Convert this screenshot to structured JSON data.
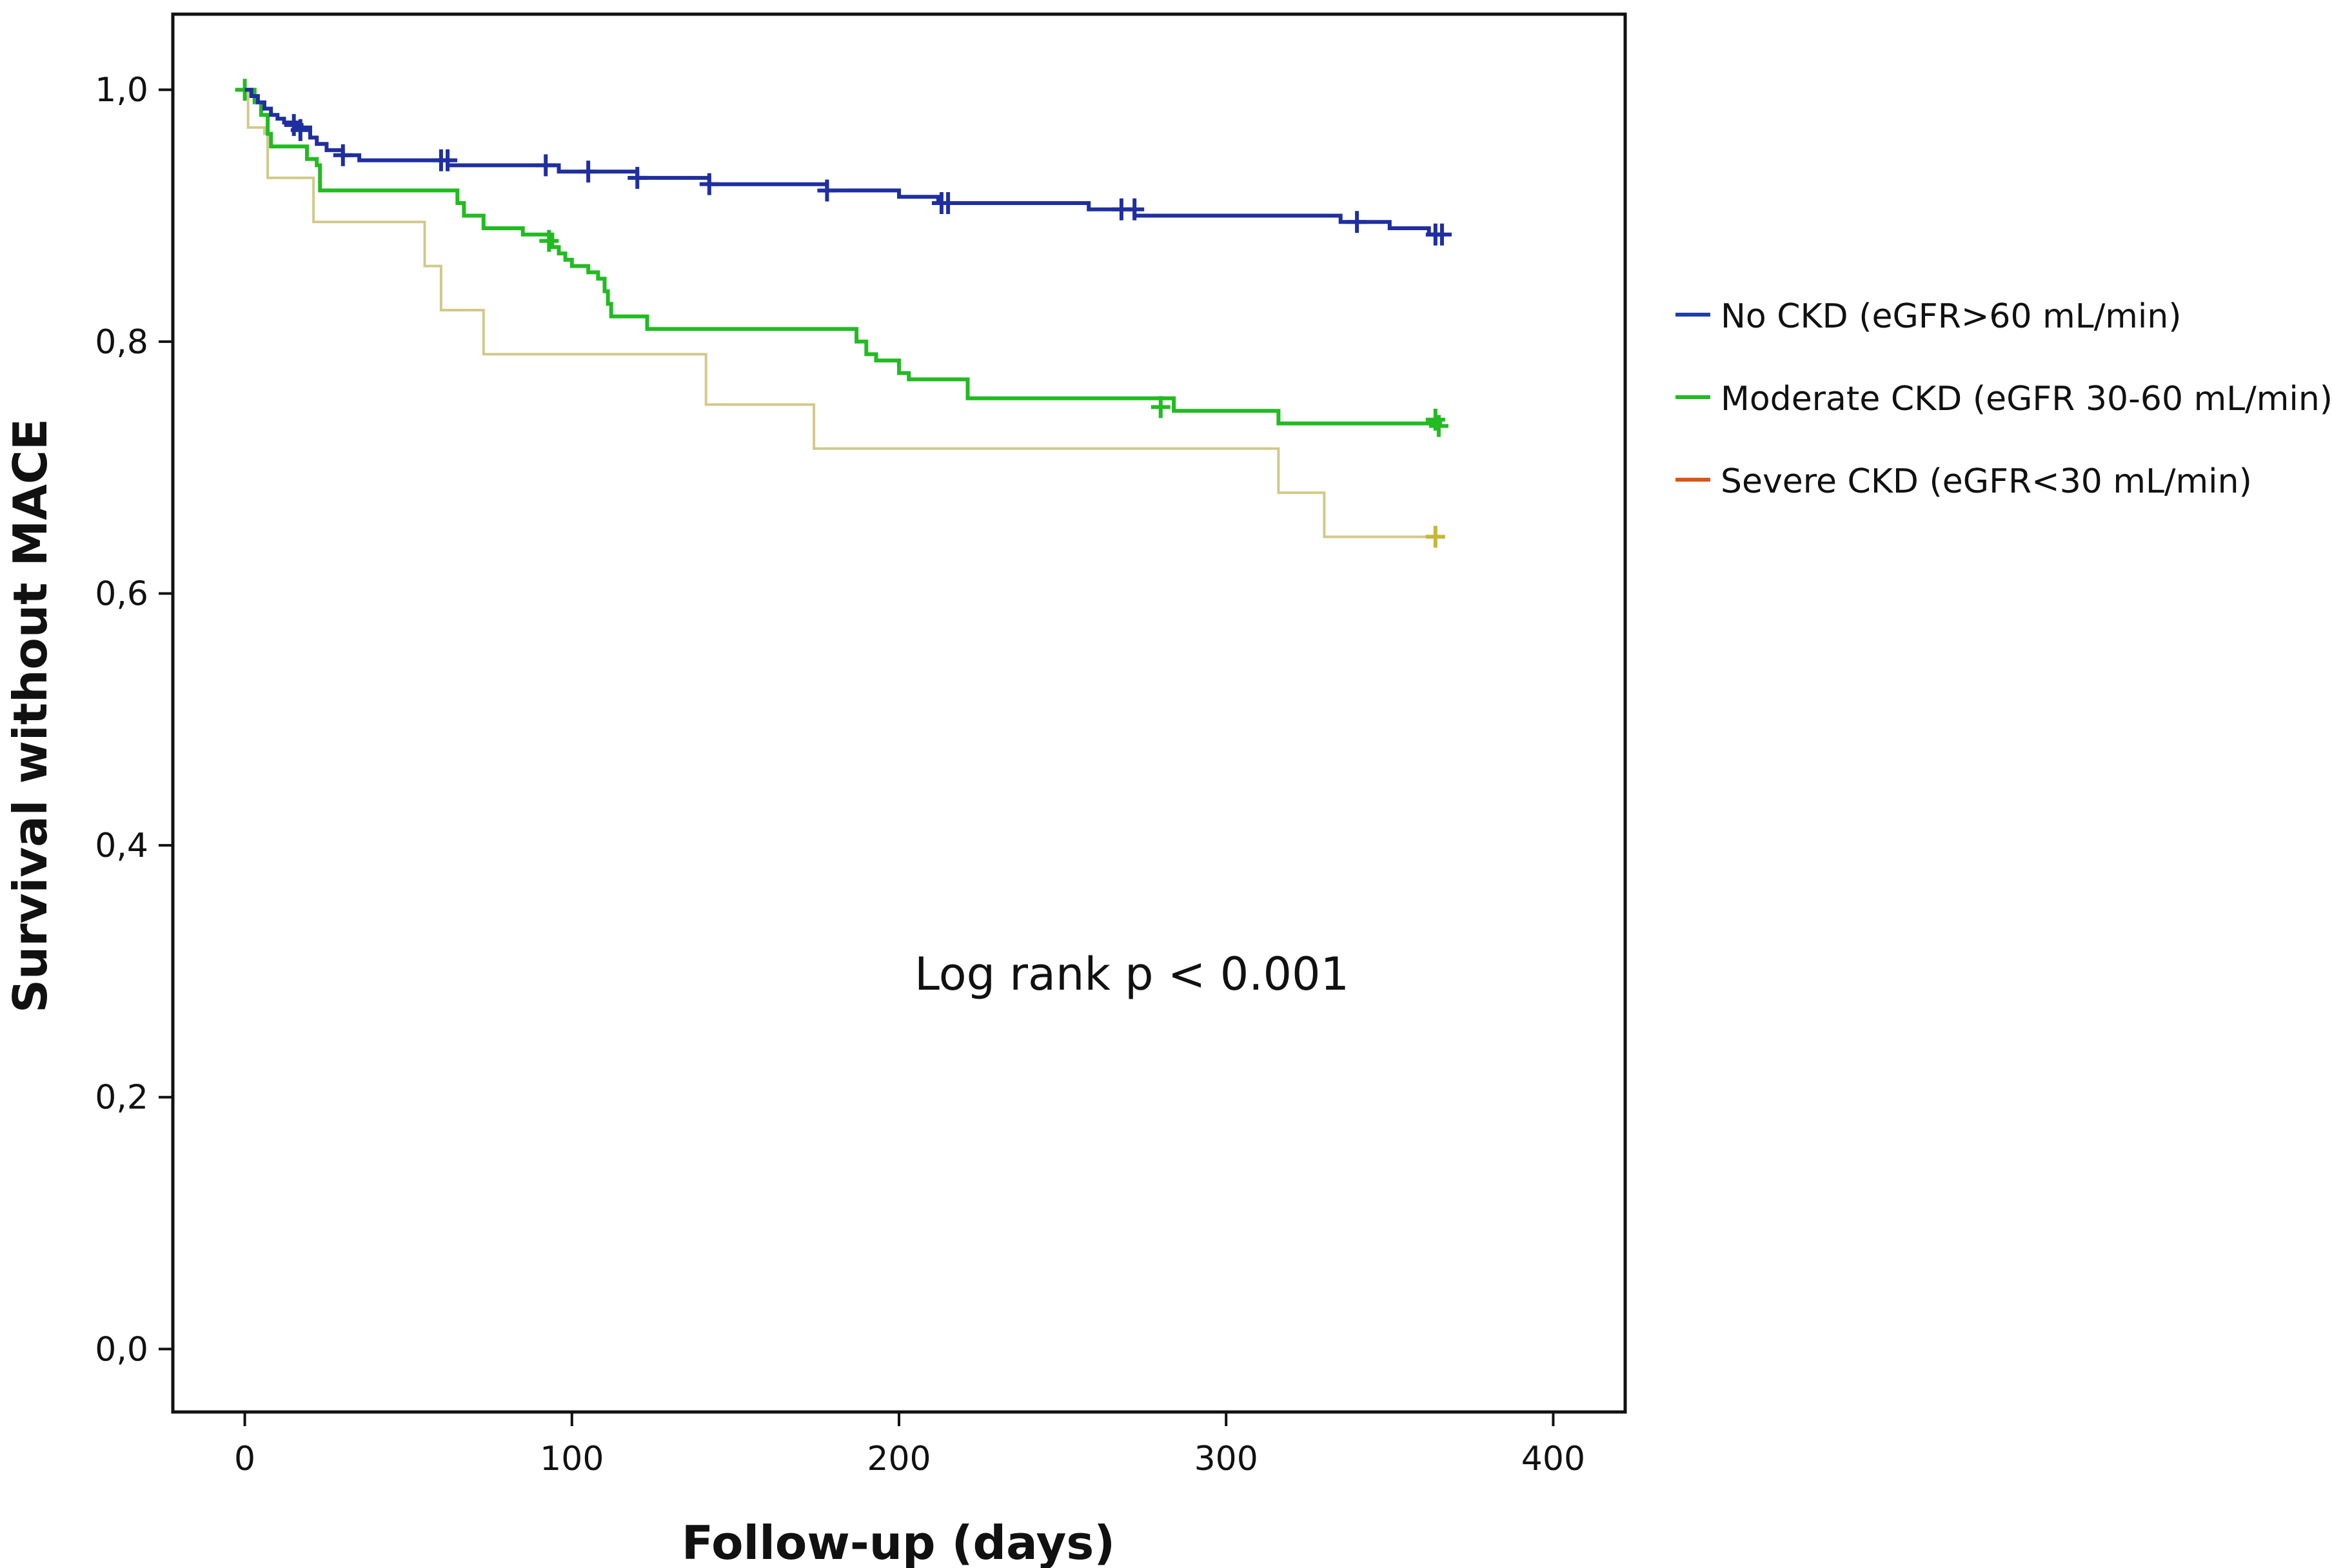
{
  "chart_data": {
    "type": "line",
    "subtype": "kaplan-meier step",
    "xlabel": "Follow-up (days)",
    "ylabel": "Survival without MACE",
    "xlim": [
      -22,
      422
    ],
    "ylim": [
      -0.05,
      1.06
    ],
    "x_ticks": [
      0,
      100,
      200,
      300,
      400
    ],
    "x_tick_labels": [
      "0",
      "100",
      "200",
      "300",
      "400"
    ],
    "y_ticks": [
      0,
      0.2,
      0.4,
      0.6,
      0.8,
      1.0
    ],
    "y_tick_labels": [
      "0,0",
      "0,2",
      "0,4",
      "0,6",
      "0,8",
      "1,0"
    ],
    "grid": false,
    "legend_position": "right-top",
    "annotation": "Log rank p < 0.001",
    "series": [
      {
        "name": "No CKD (eGFR>60 mL/min)",
        "color": "#1f2f9f",
        "legend_color": "#1f3fa8",
        "points": [
          [
            0,
            1.0
          ],
          [
            2,
            0.995
          ],
          [
            4,
            0.99
          ],
          [
            6,
            0.985
          ],
          [
            8,
            0.98
          ],
          [
            10,
            0.977
          ],
          [
            12,
            0.974
          ],
          [
            16,
            0.97
          ],
          [
            20,
            0.962
          ],
          [
            22,
            0.957
          ],
          [
            25,
            0.952
          ],
          [
            30,
            0.948
          ],
          [
            35,
            0.944
          ],
          [
            60,
            0.944
          ],
          [
            62,
            0.94
          ],
          [
            95,
            0.94
          ],
          [
            96,
            0.935
          ],
          [
            118,
            0.935
          ],
          [
            120,
            0.93
          ],
          [
            140,
            0.93
          ],
          [
            142,
            0.925
          ],
          [
            175,
            0.925
          ],
          [
            178,
            0.92
          ],
          [
            195,
            0.92
          ],
          [
            200,
            0.915
          ],
          [
            210,
            0.915
          ],
          [
            212,
            0.91
          ],
          [
            255,
            0.91
          ],
          [
            258,
            0.905
          ],
          [
            270,
            0.905
          ],
          [
            272,
            0.9
          ],
          [
            330,
            0.9
          ],
          [
            335,
            0.895
          ],
          [
            345,
            0.895
          ],
          [
            350,
            0.89
          ],
          [
            360,
            0.89
          ],
          [
            362,
            0.885
          ],
          [
            366,
            0.885
          ]
        ],
        "censored": [
          [
            15,
            0.972
          ],
          [
            17,
            0.968
          ],
          [
            30,
            0.948
          ],
          [
            60,
            0.944
          ],
          [
            62,
            0.944
          ],
          [
            92,
            0.94
          ],
          [
            105,
            0.935
          ],
          [
            120,
            0.93
          ],
          [
            142,
            0.925
          ],
          [
            178,
            0.92
          ],
          [
            213,
            0.91
          ],
          [
            215,
            0.91
          ],
          [
            268,
            0.905
          ],
          [
            272,
            0.905
          ],
          [
            340,
            0.895
          ],
          [
            364,
            0.885
          ],
          [
            366,
            0.885
          ]
        ]
      },
      {
        "name": "Moderate CKD (eGFR 30-60 mL/min)",
        "color": "#22bb22",
        "legend_color": "#22bb22",
        "points": [
          [
            0,
            1.0
          ],
          [
            3,
            0.99
          ],
          [
            5,
            0.98
          ],
          [
            7,
            0.965
          ],
          [
            8,
            0.955
          ],
          [
            18,
            0.955
          ],
          [
            19,
            0.945
          ],
          [
            22,
            0.94
          ],
          [
            23,
            0.92
          ],
          [
            63,
            0.92
          ],
          [
            65,
            0.91
          ],
          [
            67,
            0.9
          ],
          [
            72,
            0.9
          ],
          [
            73,
            0.89
          ],
          [
            84,
            0.89
          ],
          [
            85,
            0.885
          ],
          [
            92,
            0.885
          ],
          [
            94,
            0.875
          ],
          [
            96,
            0.87
          ],
          [
            98,
            0.865
          ],
          [
            100,
            0.86
          ],
          [
            105,
            0.855
          ],
          [
            108,
            0.85
          ],
          [
            110,
            0.84
          ],
          [
            111,
            0.83
          ],
          [
            112,
            0.82
          ],
          [
            122,
            0.82
          ],
          [
            123,
            0.81
          ],
          [
            185,
            0.81
          ],
          [
            187,
            0.8
          ],
          [
            190,
            0.79
          ],
          [
            193,
            0.785
          ],
          [
            200,
            0.775
          ],
          [
            203,
            0.77
          ],
          [
            220,
            0.77
          ],
          [
            221,
            0.755
          ],
          [
            283,
            0.755
          ],
          [
            284,
            0.745
          ],
          [
            315,
            0.745
          ],
          [
            316,
            0.735
          ],
          [
            366,
            0.735
          ]
        ],
        "censored": [
          [
            0,
            1.0
          ],
          [
            93,
            0.88
          ],
          [
            280,
            0.748
          ],
          [
            364,
            0.738
          ],
          [
            365,
            0.733
          ]
        ]
      },
      {
        "name": "Severe CKD (eGFR<30 mL/min)",
        "color": "#d2c98a",
        "end_color": "#c5b83a",
        "legend_color": "#d9551c",
        "points": [
          [
            0,
            1.0
          ],
          [
            1,
            0.97
          ],
          [
            6,
            0.965
          ],
          [
            7,
            0.93
          ],
          [
            20,
            0.93
          ],
          [
            21,
            0.895
          ],
          [
            54,
            0.895
          ],
          [
            55,
            0.86
          ],
          [
            58,
            0.86
          ],
          [
            60,
            0.825
          ],
          [
            72,
            0.825
          ],
          [
            73,
            0.79
          ],
          [
            140,
            0.79
          ],
          [
            141,
            0.75
          ],
          [
            173,
            0.75
          ],
          [
            174,
            0.715
          ],
          [
            315,
            0.715
          ],
          [
            316,
            0.68
          ],
          [
            329,
            0.68
          ],
          [
            330,
            0.645
          ],
          [
            366,
            0.645
          ]
        ],
        "censored": [
          [
            364,
            0.645
          ]
        ]
      }
    ]
  }
}
